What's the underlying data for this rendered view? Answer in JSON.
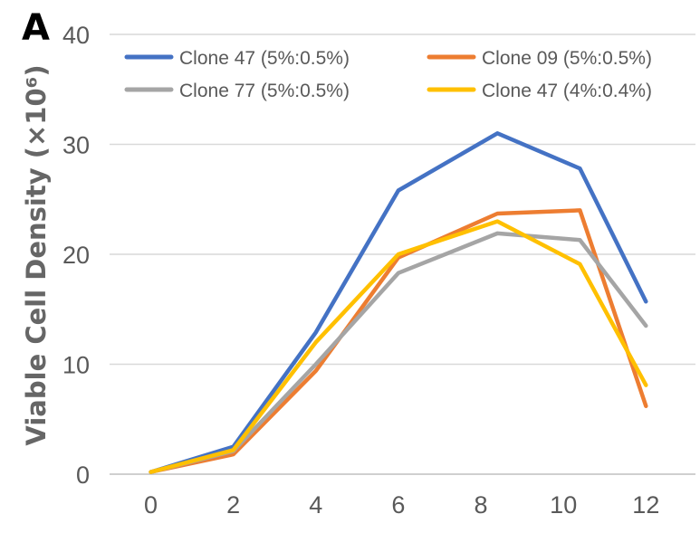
{
  "panel_label": "A",
  "chart_data": {
    "type": "line",
    "title": "",
    "xlabel": "",
    "ylabel": "Viable Cell Density (×10⁶)",
    "x": [
      0,
      2,
      4,
      6,
      8.4,
      10.4,
      12
    ],
    "xticks": [
      0,
      2,
      4,
      6,
      8,
      10,
      12
    ],
    "xlim": [
      -1,
      13.2
    ],
    "yticks": [
      0,
      10,
      20,
      30,
      40
    ],
    "ylim": [
      0,
      40
    ],
    "grid": "horizontal",
    "legend_position": "top",
    "series": [
      {
        "name": "Clone 47 (5%:0.5%)",
        "color": "#4472C4",
        "values": [
          0.2,
          2.5,
          12.9,
          25.8,
          31.0,
          27.8,
          15.7
        ]
      },
      {
        "name": "Clone 09 (5%:0.5%)",
        "color": "#ED7D31",
        "values": [
          0.2,
          1.8,
          9.4,
          19.7,
          23.7,
          24.0,
          6.2
        ]
      },
      {
        "name": "Clone 77 (5%:0.5%)",
        "color": "#A5A5A5",
        "values": [
          0.2,
          2.1,
          10.0,
          18.3,
          21.9,
          21.3,
          13.5
        ]
      },
      {
        "name": "Clone 47 (4%:0.4%)",
        "color": "#FFC000",
        "values": [
          0.2,
          2.2,
          12.0,
          20.0,
          23.0,
          19.1,
          8.1
        ]
      }
    ]
  }
}
